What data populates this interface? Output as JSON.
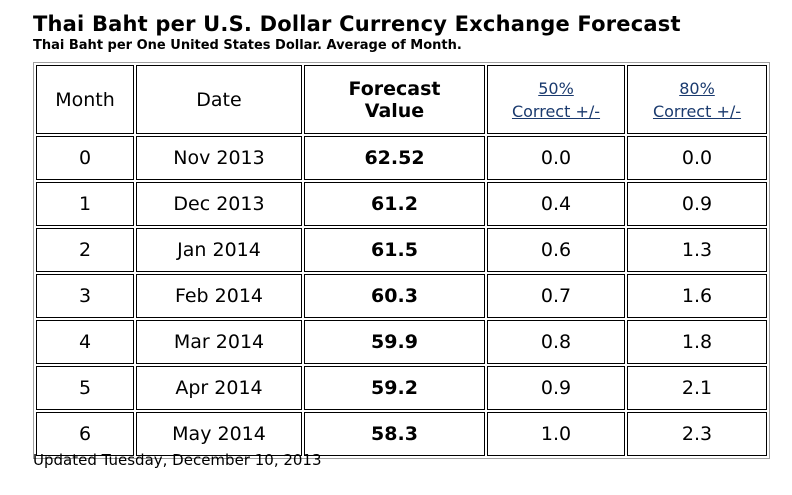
{
  "title": "Thai Baht per U.S. Dollar Currency Exchange Forecast",
  "subtitle": "Thai Baht per One United States Dollar. Average of Month.",
  "headers": {
    "month": "Month",
    "date": "Date",
    "forecast_1": "Forecast",
    "forecast_2": "Value",
    "c50_1": "50%",
    "c50_2": "Correct +/-",
    "c80_1": "80%",
    "c80_2": "Correct +/-"
  },
  "link_color": "#1a3a6e",
  "rows": [
    {
      "month": "0",
      "date": "Nov 2013",
      "value": "62.52",
      "c50": "0.0",
      "c80": "0.0"
    },
    {
      "month": "1",
      "date": "Dec 2013",
      "value": "61.2",
      "c50": "0.4",
      "c80": "0.9"
    },
    {
      "month": "2",
      "date": "Jan 2014",
      "value": "61.5",
      "c50": "0.6",
      "c80": "1.3"
    },
    {
      "month": "3",
      "date": "Feb 2014",
      "value": "60.3",
      "c50": "0.7",
      "c80": "1.6"
    },
    {
      "month": "4",
      "date": "Mar 2014",
      "value": "59.9",
      "c50": "0.8",
      "c80": "1.8"
    },
    {
      "month": "5",
      "date": "Apr 2014",
      "value": "59.2",
      "c50": "0.9",
      "c80": "2.1"
    },
    {
      "month": "6",
      "date": "May 2014",
      "value": "58.3",
      "c50": "1.0",
      "c80": "2.3"
    }
  ],
  "updated": "Updated Tuesday, December 10, 2013"
}
